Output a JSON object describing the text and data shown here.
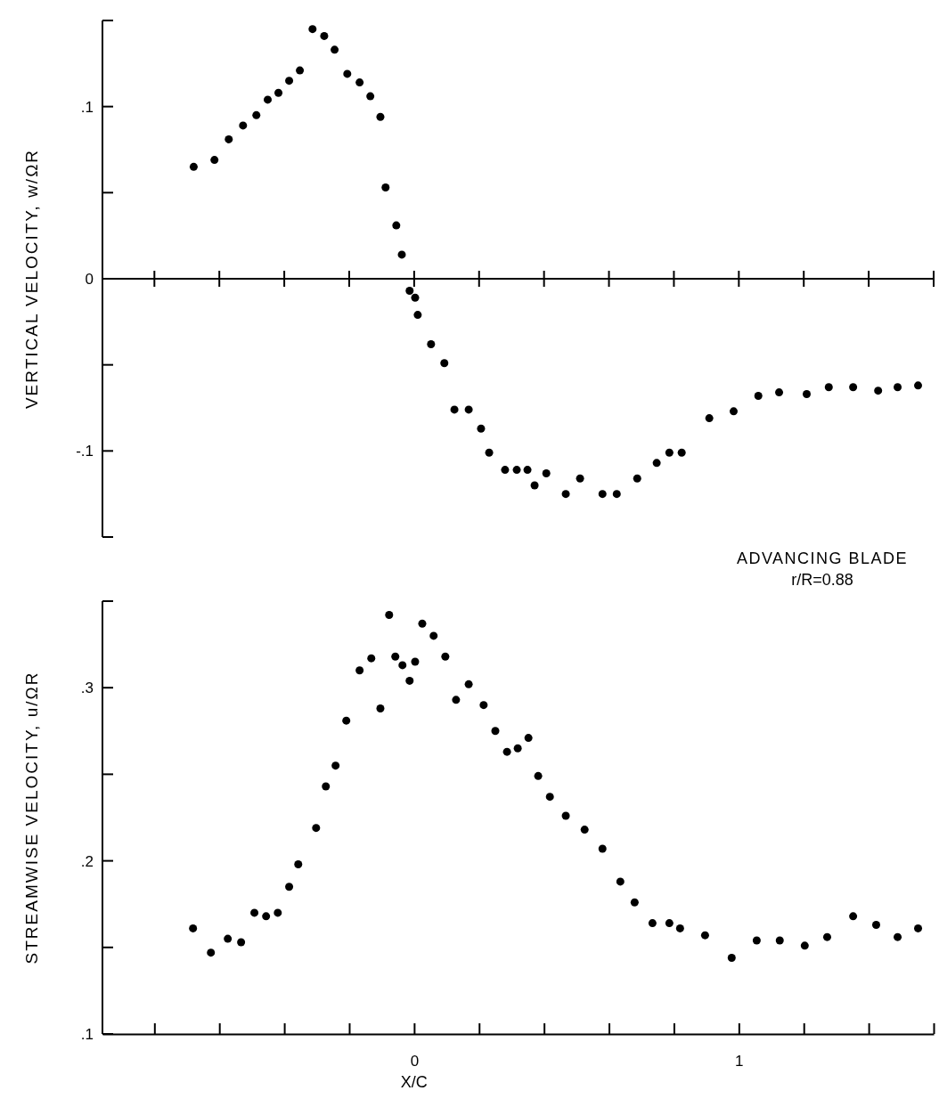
{
  "chart_data": [
    {
      "type": "scatter",
      "ylabel": "VERTICAL VELOCITY, w/ΩR",
      "xlim": [
        -0.96,
        1.6
      ],
      "ref_lines": [
        {
          "axis": "y",
          "value": 0,
          "color": "#000000"
        }
      ],
      "ylim": [
        -0.15,
        0.15
      ],
      "yticks": [
        {
          "value": -0.15,
          "label": null
        },
        {
          "value": -0.1,
          "label": "-.1"
        },
        {
          "value": -0.05,
          "label": null
        },
        0,
        {
          "value": 0.05,
          "label": null
        },
        {
          "value": 0.1,
          "label": ".1"
        },
        {
          "value": 0.15,
          "label": null
        }
      ],
      "tick_labels": "y",
      "grid": false,
      "marker": "circle",
      "series": [
        {
          "color": "#000000",
          "x": [
            -0.679,
            -0.615,
            -0.571,
            -0.527,
            -0.486,
            -0.451,
            -0.418,
            -0.385,
            -0.352,
            -0.313,
            -0.277,
            -0.245,
            -0.206,
            -0.168,
            -0.135,
            -0.104,
            -0.088,
            -0.055,
            -0.038,
            -0.014,
            0.003,
            0.011,
            0.052,
            0.093,
            0.124,
            0.168,
            0.206,
            0.231,
            0.28,
            0.316,
            0.349,
            0.371,
            0.407,
            0.467,
            0.511,
            0.58,
            0.624,
            0.687,
            0.747,
            0.786,
            0.824,
            0.909,
            0.984,
            1.06,
            1.124,
            1.209,
            1.277,
            1.352,
            1.429,
            1.489,
            1.552
          ],
          "values": [
            0.065,
            0.069,
            0.081,
            0.089,
            0.095,
            0.104,
            0.108,
            0.115,
            0.121,
            0.145,
            0.141,
            0.133,
            0.119,
            0.114,
            0.106,
            0.094,
            0.053,
            0.031,
            0.014,
            -0.007,
            -0.011,
            -0.021,
            -0.038,
            -0.049,
            -0.076,
            -0.076,
            -0.087,
            -0.101,
            -0.111,
            -0.111,
            -0.111,
            -0.12,
            -0.113,
            -0.125,
            -0.116,
            -0.125,
            -0.125,
            -0.116,
            -0.107,
            -0.101,
            -0.101,
            -0.081,
            -0.077,
            -0.068,
            -0.066,
            -0.067,
            -0.063,
            -0.063,
            -0.065,
            -0.063,
            -0.062
          ]
        }
      ]
    },
    {
      "type": "scatter",
      "ylabel": "STREAMWISE VELOCITY, u/ΩR",
      "xlabel": "X/C",
      "annotations": [
        "ADVANCING BLADE",
        "r/R=0.88"
      ],
      "xlim": [
        -0.96,
        1.6
      ],
      "xticks": [
        {
          "value": -0.8,
          "label": null
        },
        {
          "value": -0.6,
          "label": null
        },
        {
          "value": -0.4,
          "label": null
        },
        {
          "value": -0.2,
          "label": null
        },
        0,
        {
          "value": 0.2,
          "label": null
        },
        {
          "value": 0.4,
          "label": null
        },
        {
          "value": 0.6,
          "label": null
        },
        {
          "value": 0.8,
          "label": null
        },
        1,
        {
          "value": 1.2,
          "label": null
        },
        {
          "value": 1.4,
          "label": null
        },
        {
          "value": 1.6,
          "label": null
        }
      ],
      "ylim": [
        0.1,
        0.35
      ],
      "yticks": [
        {
          "value": 0.1,
          "label": ".1"
        },
        {
          "value": 0.15,
          "label": null
        },
        {
          "value": 0.2,
          "label": ".2"
        },
        {
          "value": 0.25,
          "label": null
        },
        {
          "value": 0.3,
          "label": ".3"
        },
        {
          "value": 0.35,
          "label": null
        }
      ],
      "grid": false,
      "marker": "circle",
      "series": [
        {
          "color": "#000000",
          "x": [
            -0.681,
            -0.626,
            -0.574,
            -0.533,
            -0.492,
            -0.456,
            -0.42,
            -0.385,
            -0.357,
            -0.302,
            -0.272,
            -0.242,
            -0.209,
            -0.168,
            -0.132,
            -0.104,
            -0.077,
            -0.058,
            -0.036,
            -0.014,
            0.003,
            0.025,
            0.06,
            0.096,
            0.129,
            0.168,
            0.214,
            0.25,
            0.286,
            0.319,
            0.352,
            0.382,
            0.418,
            0.467,
            0.525,
            0.58,
            0.635,
            0.679,
            0.734,
            0.786,
            0.819,
            0.896,
            0.978,
            1.055,
            1.126,
            1.203,
            1.272,
            1.352,
            1.423,
            1.489,
            1.552
          ],
          "values": [
            0.161,
            0.147,
            0.155,
            0.153,
            0.17,
            0.168,
            0.17,
            0.185,
            0.198,
            0.219,
            0.243,
            0.255,
            0.281,
            0.31,
            0.317,
            0.288,
            0.342,
            0.318,
            0.313,
            0.304,
            0.315,
            0.337,
            0.33,
            0.318,
            0.293,
            0.302,
            0.29,
            0.275,
            0.263,
            0.265,
            0.271,
            0.249,
            0.237,
            0.226,
            0.218,
            0.207,
            0.188,
            0.176,
            0.164,
            0.164,
            0.161,
            0.157,
            0.144,
            0.154,
            0.154,
            0.151,
            0.156,
            0.168,
            0.163,
            0.156,
            0.161
          ]
        }
      ]
    }
  ]
}
